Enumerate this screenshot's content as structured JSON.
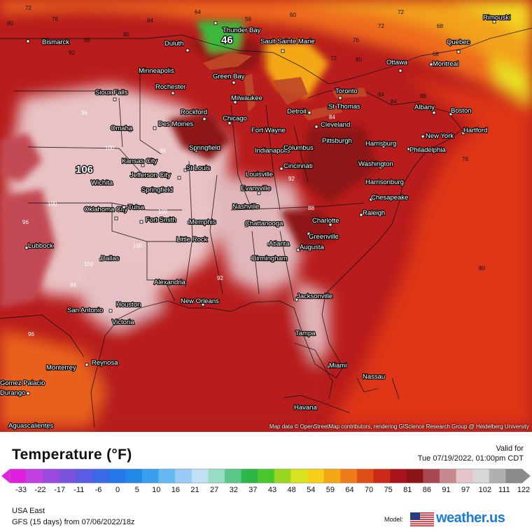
{
  "map": {
    "peak_temp": "106",
    "low_temp": "46",
    "attribution": "Map data © OpenStreetMap contributors, rendering GIScience Research Group @ Heidelberg University",
    "cities": [
      {
        "name": "Thunder Bay"
      },
      {
        "name": "Sault Sainte Marie"
      },
      {
        "name": "Bismarck"
      },
      {
        "name": "Duluth"
      },
      {
        "name": "Rimouski"
      },
      {
        "name": "Quebec"
      },
      {
        "name": "Ottawa"
      },
      {
        "name": "Montreal"
      },
      {
        "name": "Minneapolis"
      },
      {
        "name": "Green Bay"
      },
      {
        "name": "Rochester"
      },
      {
        "name": "Sioux Falls"
      },
      {
        "name": "Milwaukee"
      },
      {
        "name": "Toronto"
      },
      {
        "name": "Albany"
      },
      {
        "name": "Boston"
      },
      {
        "name": "Rockford"
      },
      {
        "name": "Detroit"
      },
      {
        "name": "St Thomas"
      },
      {
        "name": "Des Moines"
      },
      {
        "name": "Chicago"
      },
      {
        "name": "Omaha"
      },
      {
        "name": "Fort Wayne"
      },
      {
        "name": "Cleveland"
      },
      {
        "name": "New York"
      },
      {
        "name": "Hartford"
      },
      {
        "name": "Springfield"
      },
      {
        "name": "Indianapolis"
      },
      {
        "name": "Columbus"
      },
      {
        "name": "Pittsburgh"
      },
      {
        "name": "Harrisburg"
      },
      {
        "name": "Philadelphia"
      },
      {
        "name": "Kansas City"
      },
      {
        "name": "Jefferson City"
      },
      {
        "name": "St Louis"
      },
      {
        "name": "Louisville"
      },
      {
        "name": "Cincinnati"
      },
      {
        "name": "Washington"
      },
      {
        "name": "Wichita"
      },
      {
        "name": "Evansville"
      },
      {
        "name": "Harrisonburg"
      },
      {
        "name": "Springfield"
      },
      {
        "name": "Oklahoma City"
      },
      {
        "name": "Tulsa"
      },
      {
        "name": "Nashville"
      },
      {
        "name": "Chesapeake"
      },
      {
        "name": "Raleigh"
      },
      {
        "name": "Fort Smith"
      },
      {
        "name": "Memphis"
      },
      {
        "name": "Chattanooga"
      },
      {
        "name": "Charlotte"
      },
      {
        "name": "Greenville"
      },
      {
        "name": "Little Rock"
      },
      {
        "name": "Atlanta"
      },
      {
        "name": "Augusta"
      },
      {
        "name": "Lubbock"
      },
      {
        "name": "Dallas"
      },
      {
        "name": "Birmingham"
      },
      {
        "name": "Alexandria"
      },
      {
        "name": "Jacksonville"
      },
      {
        "name": "San Antonio"
      },
      {
        "name": "Houston"
      },
      {
        "name": "New Orleans"
      },
      {
        "name": "Victoria"
      },
      {
        "name": "Tampa"
      },
      {
        "name": "Reynosa"
      },
      {
        "name": "Monterrey"
      },
      {
        "name": "Miami"
      },
      {
        "name": "Nassau"
      },
      {
        "name": "Gomez Palacio"
      },
      {
        "name": "Durango"
      },
      {
        "name": "Havana"
      },
      {
        "name": "Aguascalientes"
      }
    ],
    "isolines": [
      {
        "t": "72"
      },
      {
        "t": "76"
      },
      {
        "t": "80"
      },
      {
        "t": "64"
      },
      {
        "t": "60"
      },
      {
        "t": "56"
      },
      {
        "t": "72"
      },
      {
        "t": "72"
      },
      {
        "t": "68"
      },
      {
        "t": "76"
      },
      {
        "t": "68"
      },
      {
        "t": "72"
      },
      {
        "t": "80"
      },
      {
        "t": "84"
      },
      {
        "t": "88"
      },
      {
        "t": "92"
      },
      {
        "t": "96"
      },
      {
        "t": "100"
      },
      {
        "t": "96"
      },
      {
        "t": "100"
      },
      {
        "t": "96"
      },
      {
        "t": "100"
      },
      {
        "t": "100"
      },
      {
        "t": "96"
      },
      {
        "t": "96"
      },
      {
        "t": "100"
      },
      {
        "t": "92"
      },
      {
        "t": "88"
      },
      {
        "t": "84"
      },
      {
        "t": "80"
      },
      {
        "t": "76"
      },
      {
        "t": "80"
      },
      {
        "t": "84"
      },
      {
        "t": "88"
      },
      {
        "t": "92"
      },
      {
        "t": "84"
      }
    ]
  },
  "legend": {
    "title": "Temperature (°F)",
    "valid_label": "Valid for",
    "valid_time": "Tue 07/19/2022, 01:00pm CDT",
    "ticks": [
      "-33",
      "-22",
      "-17",
      "-11",
      "-6",
      "0",
      "5",
      "10",
      "16",
      "21",
      "27",
      "32",
      "37",
      "43",
      "48",
      "54",
      "59",
      "64",
      "70",
      "75",
      "81",
      "86",
      "91",
      "97",
      "102",
      "111",
      "122"
    ],
    "colors": [
      "#e020e0",
      "#c040e0",
      "#9a48e0",
      "#7a52e0",
      "#5a5ce6",
      "#3c68ea",
      "#2476ea",
      "#1e8ae6",
      "#3aa0ee",
      "#68b8f2",
      "#98ccf6",
      "#c0e0f6",
      "#98dcc4",
      "#5cc888",
      "#2cb848",
      "#48c82c",
      "#98d820",
      "#d8e420",
      "#f4d018",
      "#f4a818",
      "#ee7c18",
      "#e04e18",
      "#cc2a16",
      "#a8141a",
      "#8e1418",
      "#a84850",
      "#c88890",
      "#e4c4c8",
      "#d8d8d8",
      "#b0b0b0",
      "#8c8c8c"
    ],
    "region": "USA East",
    "model_line": "GFS (15 days) from  07/06/2022/18z",
    "model_label": "Model:",
    "brand": "weather.us"
  }
}
